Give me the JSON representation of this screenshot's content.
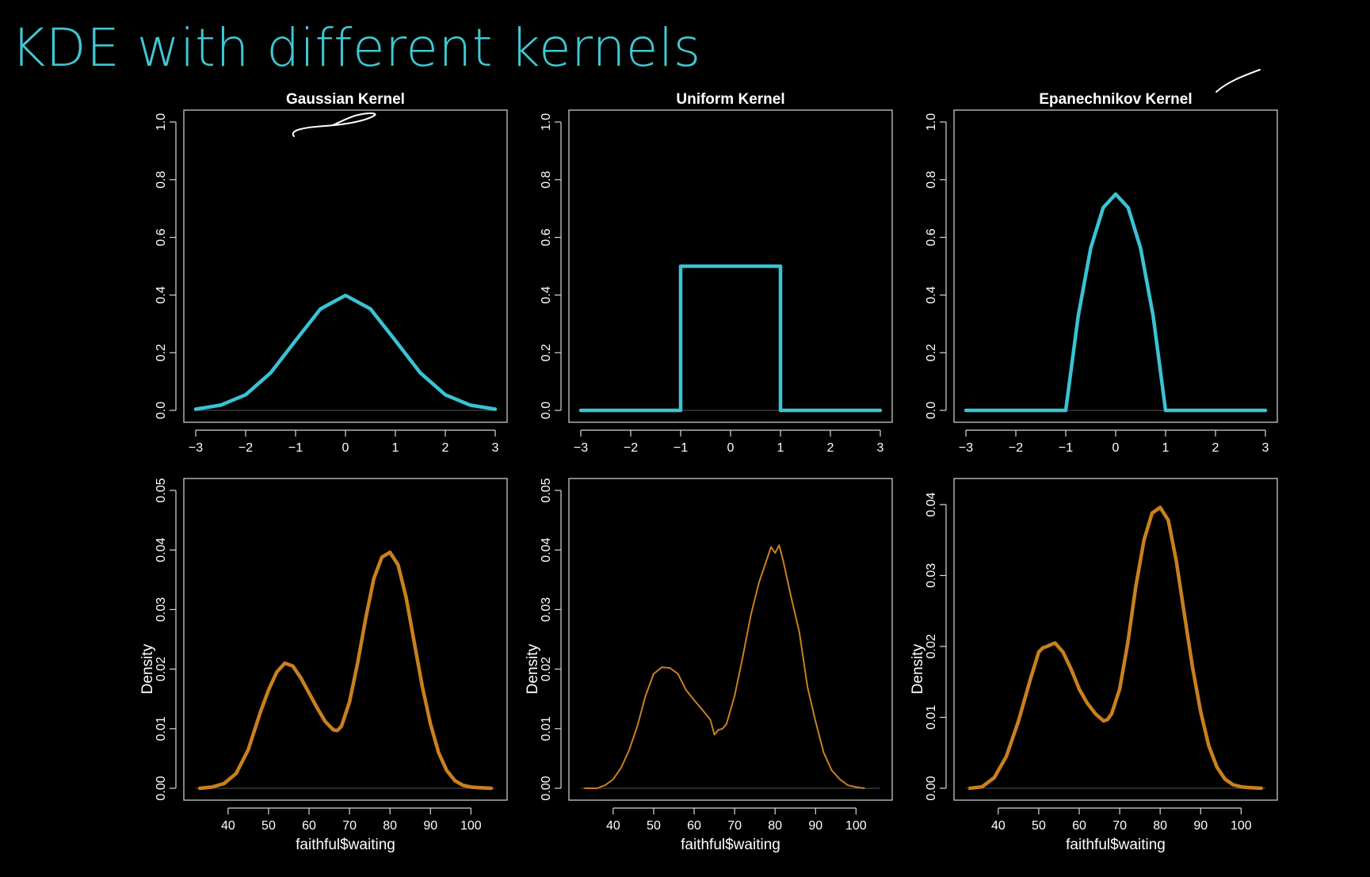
{
  "slide": {
    "title": "KDE with different kernels"
  },
  "colors": {
    "kernel_curve": "#3ac3d3",
    "density_curve": "#c9801f",
    "background": "#000000",
    "title": "#3fc8d4"
  },
  "chart_data": [
    {
      "type": "line",
      "title": "Gaussian Kernel",
      "xlabel": "",
      "ylabel": "",
      "xlim": [
        -3,
        3
      ],
      "ylim": [
        0,
        1.0
      ],
      "x_ticks": [
        "−3",
        "−2",
        "−1",
        "0",
        "1",
        "2",
        "3"
      ],
      "y_ticks": [
        "0.0",
        "0.2",
        "0.4",
        "0.6",
        "0.8",
        "1.0"
      ],
      "series": [
        {
          "x": [
            -3,
            -2.5,
            -2,
            -1.5,
            -1,
            -0.5,
            0,
            0.5,
            1,
            1.5,
            2,
            2.5,
            3
          ],
          "y": [
            0.004,
            0.018,
            0.054,
            0.13,
            0.242,
            0.352,
            0.399,
            0.352,
            0.242,
            0.13,
            0.054,
            0.018,
            0.004
          ]
        }
      ]
    },
    {
      "type": "line",
      "title": "Uniform Kernel",
      "xlabel": "",
      "ylabel": "",
      "xlim": [
        -3,
        3
      ],
      "ylim": [
        0,
        1.0
      ],
      "x_ticks": [
        "−3",
        "−2",
        "−1",
        "0",
        "1",
        "2",
        "3"
      ],
      "y_ticks": [
        "0.0",
        "0.2",
        "0.4",
        "0.6",
        "0.8",
        "1.0"
      ],
      "series": [
        {
          "x": [
            -3,
            -1,
            -1,
            1,
            1,
            3
          ],
          "y": [
            0,
            0,
            0.5,
            0.5,
            0,
            0
          ]
        }
      ]
    },
    {
      "type": "line",
      "title": "Epanechnikov Kernel",
      "xlabel": "",
      "ylabel": "",
      "xlim": [
        -3,
        3
      ],
      "ylim": [
        0,
        1.0
      ],
      "x_ticks": [
        "−3",
        "−2",
        "−1",
        "0",
        "1",
        "2",
        "3"
      ],
      "y_ticks": [
        "0.0",
        "0.2",
        "0.4",
        "0.6",
        "0.8",
        "1.0"
      ],
      "series": [
        {
          "x": [
            -3,
            -1,
            -0.75,
            -0.5,
            -0.25,
            0,
            0.25,
            0.5,
            0.75,
            1,
            3
          ],
          "y": [
            0,
            0,
            0.328,
            0.5625,
            0.703,
            0.75,
            0.703,
            0.5625,
            0.328,
            0,
            0
          ]
        }
      ]
    },
    {
      "type": "line",
      "title": "",
      "xlabel": "faithful$waiting",
      "ylabel": "Density",
      "xlim": [
        32,
        106
      ],
      "ylim": [
        0,
        0.05
      ],
      "x_ticks": [
        "40",
        "50",
        "60",
        "70",
        "80",
        "90",
        "100"
      ],
      "y_ticks": [
        "0.00",
        "0.01",
        "0.02",
        "0.03",
        "0.04",
        "0.05"
      ],
      "series": [
        {
          "x": [
            33,
            36,
            39,
            42,
            45,
            48,
            50,
            52,
            54,
            56,
            58,
            60,
            62,
            64,
            66,
            67,
            68,
            70,
            72,
            74,
            76,
            78,
            80,
            82,
            84,
            86,
            88,
            90,
            92,
            94,
            96,
            98,
            100,
            102,
            105
          ],
          "y": [
            0.0,
            0.0002,
            0.0008,
            0.0025,
            0.0065,
            0.0128,
            0.0165,
            0.0195,
            0.021,
            0.0205,
            0.0185,
            0.016,
            0.0135,
            0.0112,
            0.0098,
            0.0097,
            0.0104,
            0.0145,
            0.021,
            0.0285,
            0.0352,
            0.0388,
            0.0396,
            0.0375,
            0.032,
            0.0245,
            0.017,
            0.0108,
            0.006,
            0.003,
            0.0013,
            0.0005,
            0.0002,
            0.0001,
            0.0
          ]
        }
      ]
    },
    {
      "type": "line",
      "title": "",
      "xlabel": "faithful$waiting",
      "ylabel": "Density",
      "xlim": [
        32,
        106
      ],
      "ylim": [
        0,
        0.05
      ],
      "x_ticks": [
        "40",
        "50",
        "60",
        "70",
        "80",
        "90",
        "100"
      ],
      "y_ticks": [
        "0.00",
        "0.01",
        "0.02",
        "0.03",
        "0.04",
        "0.05"
      ],
      "series": [
        {
          "x": [
            33,
            36,
            38,
            40,
            42,
            44,
            46,
            48,
            50,
            52,
            54,
            56,
            58,
            60,
            62,
            64,
            65,
            66,
            67,
            68,
            70,
            72,
            74,
            76,
            78,
            79,
            80,
            81,
            82,
            84,
            86,
            88,
            90,
            92,
            94,
            96,
            98,
            100,
            102
          ],
          "y": [
            0.0,
            0.0,
            0.0005,
            0.0015,
            0.0035,
            0.0065,
            0.0105,
            0.0155,
            0.0192,
            0.0203,
            0.0202,
            0.0192,
            0.0165,
            0.0148,
            0.0132,
            0.0115,
            0.009,
            0.0098,
            0.01,
            0.0108,
            0.0155,
            0.022,
            0.029,
            0.0345,
            0.0385,
            0.0405,
            0.0395,
            0.0408,
            0.0382,
            0.032,
            0.0262,
            0.017,
            0.0112,
            0.006,
            0.003,
            0.0015,
            0.0005,
            0.0002,
            0.0
          ]
        }
      ]
    },
    {
      "type": "line",
      "title": "",
      "xlabel": "faithful$waiting",
      "ylabel": "Density",
      "xlim": [
        32,
        106
      ],
      "ylim": [
        0,
        0.042
      ],
      "x_ticks": [
        "40",
        "50",
        "60",
        "70",
        "80",
        "90",
        "100"
      ],
      "y_ticks": [
        "0.00",
        "0.01",
        "0.02",
        "0.03",
        "0.04"
      ],
      "series": [
        {
          "x": [
            33,
            36,
            39,
            42,
            45,
            48,
            50,
            51,
            52,
            54,
            56,
            58,
            60,
            62,
            64,
            66,
            67,
            68,
            70,
            72,
            74,
            76,
            78,
            80,
            82,
            84,
            86,
            88,
            90,
            92,
            94,
            96,
            98,
            100,
            102,
            105
          ],
          "y": [
            0.0,
            0.0002,
            0.0015,
            0.0045,
            0.0095,
            0.0155,
            0.0192,
            0.0198,
            0.02,
            0.0205,
            0.0192,
            0.0168,
            0.014,
            0.012,
            0.0105,
            0.0095,
            0.0097,
            0.0105,
            0.014,
            0.0205,
            0.0285,
            0.035,
            0.0388,
            0.0396,
            0.0378,
            0.032,
            0.0245,
            0.017,
            0.0108,
            0.006,
            0.003,
            0.0013,
            0.0005,
            0.0002,
            0.0001,
            0.0
          ]
        }
      ]
    }
  ]
}
